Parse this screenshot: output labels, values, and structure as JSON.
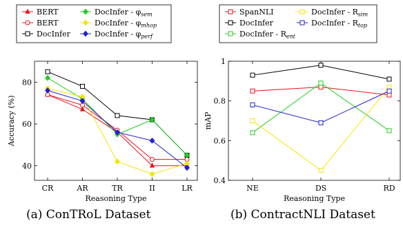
{
  "captions": {
    "a": "(a) ConTRoL Dataset",
    "b": "(b) ContractNLI Dataset"
  },
  "chart_data": [
    {
      "type": "line",
      "title": "",
      "xlabel": "Reasoning Type",
      "ylabel": "Accuracy (%)",
      "categories": [
        "CR",
        "AR",
        "TR",
        "II",
        "LR"
      ],
      "ylim": [
        33,
        90
      ],
      "yticks": [
        40,
        60,
        80
      ],
      "grid": false,
      "legend": "above",
      "series": [
        {
          "name": "BERT",
          "display_name": "BERT",
          "color": "#e8101a",
          "marker": "triangle",
          "values": [
            74,
            67,
            56,
            40,
            40
          ]
        },
        {
          "name": "BERT",
          "display_name": "BERT",
          "color": "#e8101a",
          "marker": "circle",
          "values": [
            74,
            69,
            57,
            43,
            43
          ]
        },
        {
          "name": "DocInfer",
          "display_name": "DocInfer",
          "color": "#000000",
          "marker": "square",
          "values": [
            85,
            78,
            64,
            62,
            45
          ]
        },
        {
          "name": "DocInfer - phi_sem",
          "display_name": "DocInfer - φ",
          "sub": "sem",
          "color": "#22cc22",
          "marker": "diamond",
          "values": [
            82,
            72,
            55,
            62,
            45
          ]
        },
        {
          "name": "DocInfer - phi_mhop",
          "display_name": "DocInfer - φ",
          "sub": "mhop",
          "color": "#f2e600",
          "marker": "diamond",
          "values": [
            77,
            73,
            42,
            36,
            41
          ]
        },
        {
          "name": "DocInfer - phi_perf",
          "display_name": "DocInfer - φ",
          "sub": "perf",
          "color": "#1f1fd6",
          "marker": "diamond",
          "values": [
            76,
            71,
            56,
            52,
            39
          ]
        }
      ]
    },
    {
      "type": "line",
      "title": "",
      "xlabel": "Reasoning Type",
      "ylabel": "mAP",
      "categories": [
        "NE",
        "DS",
        "RD"
      ],
      "ylim": [
        0.4,
        1.0
      ],
      "yticks": [
        0.4,
        0.6,
        0.8,
        1
      ],
      "grid": false,
      "legend": "above",
      "series": [
        {
          "name": "SpanNLI",
          "display_name": "SpanNLI",
          "color": "#e8101a",
          "marker": "square",
          "values": [
            0.85,
            0.87,
            0.83
          ]
        },
        {
          "name": "DocInfer",
          "display_name": "DocInfer",
          "color": "#000000",
          "marker": "square",
          "values": [
            0.93,
            0.98,
            0.91
          ]
        },
        {
          "name": "DocInfer - R_ent",
          "display_name": "DocInfer - R",
          "sub": "ent",
          "color": "#22cc22",
          "marker": "square",
          "values": [
            0.64,
            0.89,
            0.65
          ]
        },
        {
          "name": "DocInfer - R_sim",
          "display_name": "DocInfer - R",
          "sub": "sim",
          "color": "#f2e600",
          "marker": "square",
          "values": [
            0.7,
            0.45,
            0.87
          ]
        },
        {
          "name": "DocInfer - R_top",
          "display_name": "DocInfer - R",
          "sub": "top",
          "color": "#1f1fd6",
          "marker": "square",
          "values": [
            0.78,
            0.69,
            0.85
          ]
        }
      ]
    }
  ]
}
